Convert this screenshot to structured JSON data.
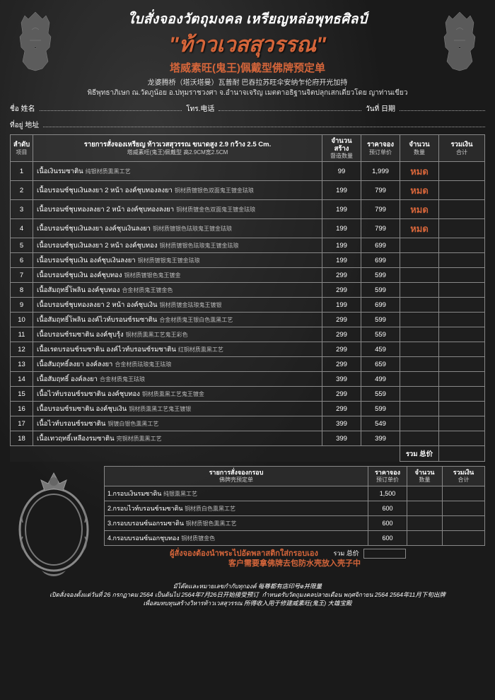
{
  "header": {
    "line1": "ใบสั่งจองวัตถุมงคล เหรียญหล่อพุทธศิลป์",
    "line2": "\"ท้าวเวสสุวรรณ\"",
    "line3": "塔威素旺(鬼王)佩戴型佛牌预定单",
    "line4": "龙婆腾桥（塔沃塔曼）瓦普耐 巴吞拉苏旺伞安纳乍伦府开光加持",
    "line5": "พิธีพุทธาภิเษก ณ.วัดภูน้อย อ.ปทุมราชวงศา จ.อำนาจเจริญ   เมตตาอธิฐานจิตปลุกเสกเดี่ยวโดย ญาท่านเขียว"
  },
  "info": {
    "name_label": "ชื่อ 姓名",
    "tel_label": "โทร.电话",
    "date_label": "วันที่ 日期",
    "addr_label": "ที่อยู่ 地址"
  },
  "table": {
    "headers": {
      "num": "ลำดับ",
      "num_sub": "项目",
      "desc": "รายการสั่งจองเหรียญ ท้าวเวสสุวรรณ ขนาดสูง 2.9 กว้าง 2.5 Cm.",
      "desc_sub": "塔威素旺(鬼王)佩戴型 高2.9CM宽2.5CM",
      "made": "จำนวนสร้าง",
      "made_sub": "督造数量",
      "price": "ราคาจอง",
      "price_sub": "预订单价",
      "qty": "จำนวน",
      "qty_sub": "数量",
      "total": "รวมเงิน",
      "total_sub": "合计"
    },
    "rows": [
      {
        "n": "1",
        "th": "เนื้อเงินรมซาติน",
        "cn": "纯银材质熏黑工艺",
        "made": "99",
        "price": "1,999",
        "sold": "หมด"
      },
      {
        "n": "2",
        "th": "เนื้อบรอนซ์ชุบเงินลงยา 2 หน้า องค์ชุบทองลงยา",
        "cn": "铜材质镀银色双面鬼王镀金珐琅",
        "made": "199",
        "price": "799",
        "sold": "หมด"
      },
      {
        "n": "3",
        "th": "เนื้อบรอนซ์ชุบทองลงยา 2 หน้า องค์ชุบทองลงยา",
        "cn": "铜材质镀金色双面鬼王镀金珐琅",
        "made": "199",
        "price": "799",
        "sold": "หมด"
      },
      {
        "n": "4",
        "th": "เนื้อบรอนซ์ชุบเงินลงยา องค์ชุบเงินลงยา",
        "cn": "铜材质镀银色珐琅鬼王镀金珐琅",
        "made": "199",
        "price": "799",
        "sold": "หมด"
      },
      {
        "n": "5",
        "th": "เนื้อบรอนซ์ชุบเงินลงยา 2 หน้า องค์ชุบทอง",
        "cn": "铜材质镀银色珐琅鬼王镀金珐琅",
        "made": "199",
        "price": "699"
      },
      {
        "n": "6",
        "th": "เนื้อบรอนซ์ชุบเงิน องค์ชุบเงินลงยา",
        "cn": "铜材质镀银鬼王镀金珐琅",
        "made": "199",
        "price": "699"
      },
      {
        "n": "7",
        "th": "เนื้อบรอนซ์ชุบเงิน องค์ชุบทอง",
        "cn": "铜材质镀银色鬼王镀金",
        "made": "299",
        "price": "599"
      },
      {
        "n": "8",
        "th": "เนื้อสัมฤทธิ์โพลิน องค์ชุบทอง",
        "cn": "合金材质鬼王镀金色",
        "made": "299",
        "price": "599"
      },
      {
        "n": "9",
        "th": "เนื้อบรอนซ์ชุบทองลงยา 2 หน้า องค์ชุบเงิน",
        "cn": "铜材质镀金珐琅鬼王镀银",
        "made": "199",
        "price": "699"
      },
      {
        "n": "10",
        "th": "เนื้อสัมฤทธิ์โพลิน องค์ไวท์บรอนซ์รมซาติน",
        "cn": "合金材质鬼王银白色熏黑工艺",
        "made": "299",
        "price": "599"
      },
      {
        "n": "11",
        "th": "เนื้อบรอนซ์รมซาติน องค์ชุบรุ้ง",
        "cn": "铜材质熏黑工艺鬼王彩色",
        "made": "299",
        "price": "559"
      },
      {
        "n": "12",
        "th": "เนื้อเรดบรอนซ์รมซาติน องค์ไวท์บรอนซ์รมซาติน",
        "cn": "红铜材质熏黑工艺",
        "made": "299",
        "price": "459"
      },
      {
        "n": "13",
        "th": "เนื้อสัมฤทธิ์ลงยา องค์ลงยา",
        "cn": "合金材质珐琅鬼王珐琅",
        "made": "299",
        "price": "659"
      },
      {
        "n": "14",
        "th": "เนื้อสัมฤทธิ์ องค์ลงยา",
        "cn": "合金材质鬼王珐琅",
        "made": "399",
        "price": "499"
      },
      {
        "n": "15",
        "th": "เนื้อไวท์บรอนซ์รมซาติน องค์ชุบทอง",
        "cn": "铜材质熏黑工艺鬼王镀金",
        "made": "299",
        "price": "559"
      },
      {
        "n": "16",
        "th": "เนื้อบรอนซ์รมซาติน องค์ชุบเงิน",
        "cn": "铜材质熏黑工艺鬼王镀银",
        "made": "299",
        "price": "599"
      },
      {
        "n": "17",
        "th": "เนื้อไวท์บรอนซ์รมซาติน",
        "cn": "铜镀白银色熏黑工艺",
        "made": "399",
        "price": "549"
      },
      {
        "n": "18",
        "th": "เนื้อเทวฤทธิ์เหลืองรมซาติน",
        "cn": "完铜材质熏黑工艺",
        "made": "399",
        "price": "399"
      }
    ],
    "sum_label": "รวม 总价"
  },
  "frame_table": {
    "headers": {
      "desc": "รายการสั่งจองกรอบ",
      "desc_sub": "佛牌壳预定单",
      "price": "ราคาจอง",
      "price_sub": "预订单价",
      "qty": "จำนวน",
      "qty_sub": "数量",
      "total": "รวมเงิน",
      "total_sub": "合计"
    },
    "rows": [
      {
        "th": "1.กรอบเงินรมซาติน",
        "cn": "纯银熏黑工艺",
        "price": "1,500"
      },
      {
        "th": "2.กรอบไวท์บรอนซ์รมซาติน",
        "cn": "铜材质白色熏黑工艺",
        "price": "600"
      },
      {
        "th": "3.กรอบบรอนซ์นอกรมซาติน",
        "cn": "铜材质银色熏黑工艺",
        "price": "600"
      },
      {
        "th": "4.กรอบบรอนซ์นอกชุบทอง",
        "cn": "铜材质镀金色",
        "price": "600"
      }
    ],
    "sum_label": "รวม 总价"
  },
  "notice": {
    "line1": "ผู้สั่งจองต้องนำพระไปอัดพลาสติกใส่กรอบเอง",
    "line2": "客户需要拿佛牌去包防水壳放入壳子中"
  },
  "footer": {
    "line1": "มีโค๊ตและหมายเลขกำกับทุกองค์  每尊都有店印号ø并限量",
    "line2a": "เปิดสั่งจองตั้งแต่วันที่ 26 กรกฏาคม 2564 เป็นต้นไป  2564年7月26日开始接受预订",
    "line2b": "กำหนดรับวัตถุมงคลปลายเดือน พฤศจิกายน 2564  2564年11月下旬出牌",
    "line3": "เพื่อสมทบทุนสร้างวิหารท้าวเวสสุวรรณ  所得收入用于修建威素旺(鬼王) 大雄宝殿"
  },
  "colors": {
    "accent": "#d4653a",
    "bg": "#1a1a1a",
    "text": "#ffffff",
    "border": "#888888"
  }
}
